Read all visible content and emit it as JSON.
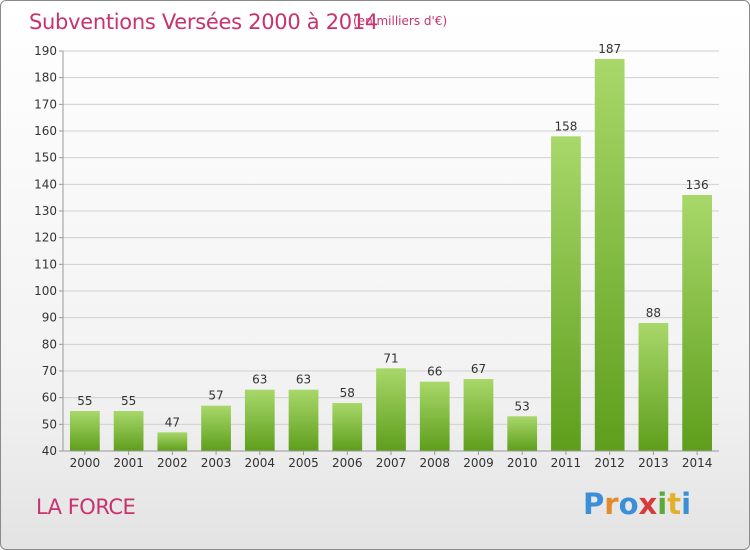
{
  "header": {
    "title": "Subventions Versées 2000 à 2014",
    "unit": "(en milliers d'€)"
  },
  "footer": {
    "place": "LA FORCE",
    "logo": [
      "P",
      "r",
      "o",
      "x",
      "i",
      "t",
      "i"
    ],
    "logo_colors": [
      "#3a8fd6",
      "#e38b2c",
      "#3a8fd6",
      "#d83a3a",
      "#5aaa3a",
      "#e3b02c",
      "#3a8fd6"
    ]
  },
  "colors": {
    "bar_light": "#a8d86a",
    "bar_dark": "#5e9e1c",
    "grid": "#d0d0d0",
    "axis": "#999999"
  },
  "chart_data": {
    "type": "bar",
    "title": "Subventions Versées 2000 à 2014",
    "subtitle": "(en milliers d'€)",
    "xlabel": "",
    "ylabel": "",
    "categories": [
      "2000",
      "2001",
      "2002",
      "2003",
      "2004",
      "2005",
      "2006",
      "2007",
      "2008",
      "2009",
      "2010",
      "2011",
      "2012",
      "2013",
      "2014"
    ],
    "values": [
      55,
      55,
      47,
      57,
      63,
      63,
      58,
      71,
      66,
      67,
      53,
      158,
      187,
      88,
      136
    ],
    "ylim": [
      40,
      190
    ],
    "yticks": [
      40,
      50,
      60,
      70,
      80,
      90,
      100,
      110,
      120,
      130,
      140,
      150,
      160,
      170,
      180,
      190
    ],
    "grid": true,
    "legend": "none"
  }
}
